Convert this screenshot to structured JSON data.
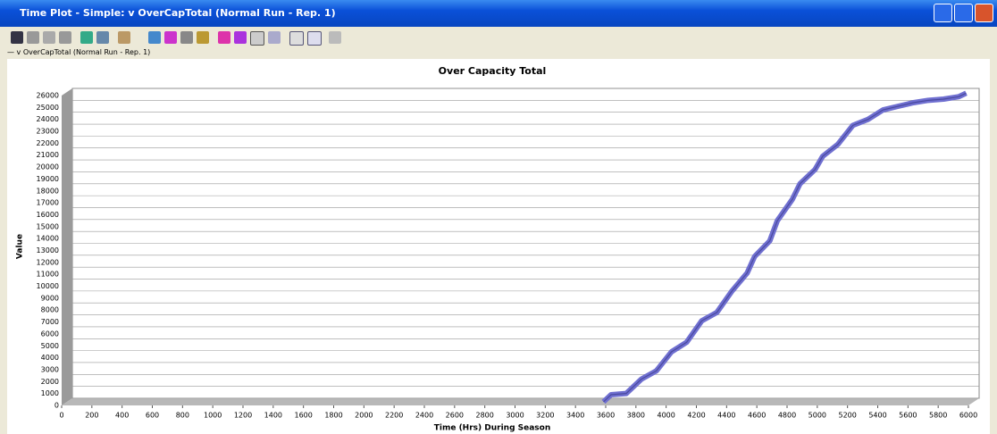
{
  "window": {
    "title": "Time Plot - Simple: v OverCapTotal (Normal Run - Rep. 1)"
  },
  "chart_data": {
    "type": "line",
    "title": "Over Capacity Total",
    "x_label": "Time (Hrs) During Season",
    "y_label": "Value",
    "x": [
      3550,
      3600,
      3700,
      3800,
      3900,
      4000,
      4100,
      4200,
      4300,
      4400,
      4500,
      4550,
      4650,
      4700,
      4800,
      4850,
      4950,
      5000,
      5100,
      5200,
      5300,
      5400,
      5500,
      5600,
      5700,
      5800,
      5900,
      5950
    ],
    "series": [
      {
        "name": "v OverCapTotal (Normal Run - Rep. 1)",
        "color": "#6f6fd0",
        "values": [
          0,
          600,
          700,
          1900,
          2600,
          4200,
          5000,
          6800,
          7500,
          9300,
          10800,
          12200,
          13500,
          15200,
          17000,
          18300,
          19500,
          20600,
          21600,
          23200,
          23700,
          24500,
          24800,
          25100,
          25300,
          25400,
          25600,
          25900
        ]
      }
    ],
    "xlim": [
      0,
      6000
    ],
    "ylim": [
      0,
      26000
    ],
    "xticks": [
      0,
      200,
      400,
      600,
      800,
      1000,
      1200,
      1400,
      1600,
      1800,
      2000,
      2200,
      2400,
      2600,
      2800,
      3000,
      3200,
      3400,
      3600,
      3800,
      4000,
      4200,
      4400,
      4600,
      4800,
      5000,
      5200,
      5400,
      5600,
      5800,
      6000
    ],
    "yticks": [
      0,
      1000,
      2000,
      3000,
      4000,
      5000,
      6000,
      7000,
      8000,
      9000,
      10000,
      11000,
      12000,
      13000,
      14000,
      15000,
      16000,
      17000,
      18000,
      19000,
      20000,
      21000,
      22000,
      23000,
      24000,
      25000,
      26000
    ],
    "grid": true
  }
}
